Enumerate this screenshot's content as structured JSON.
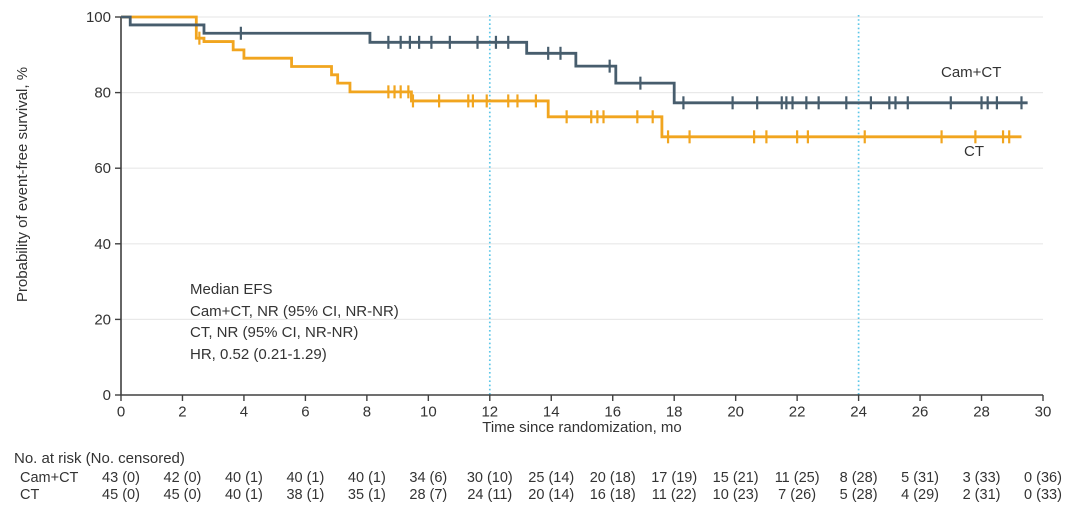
{
  "chart_data": {
    "type": "line",
    "subtype": "kaplan-meier-step",
    "title": "",
    "xlabel": "Time since randomization, mo",
    "ylabel": "Probability of event-free survival, %",
    "xlim": [
      0,
      30
    ],
    "ylim": [
      0,
      100
    ],
    "xticks": [
      0,
      2,
      4,
      6,
      8,
      10,
      12,
      14,
      16,
      18,
      20,
      22,
      24,
      26,
      28,
      30
    ],
    "yticks": [
      0,
      20,
      40,
      60,
      80,
      100
    ],
    "grid": "horizontal",
    "gridline_color": "#e9e9e9",
    "axis_color": "#404040",
    "reference_lines_x": [
      12,
      24
    ],
    "reference_line_color": "#5bc6e8",
    "annotation": [
      "Median EFS",
      "Cam+CT, NR (95% CI, NR-NR)",
      "CT, NR (95% CI, NR-NR)",
      "HR, 0.52 (0.21-1.29)"
    ],
    "series": [
      {
        "name": "CT",
        "color": "#f1a51f",
        "steps": [
          [
            0,
            100
          ],
          [
            2.45,
            94.4
          ],
          [
            2.7,
            93.5
          ],
          [
            3.65,
            91.3
          ],
          [
            4.0,
            89.1
          ],
          [
            5.55,
            86.9
          ],
          [
            6.85,
            84.7
          ],
          [
            7.05,
            82.5
          ],
          [
            7.45,
            80.2
          ],
          [
            9.45,
            77.8
          ],
          [
            13.9,
            73.6
          ],
          [
            17.6,
            68.3
          ],
          [
            29.3,
            68.3
          ]
        ],
        "censors": [
          [
            2.55,
            94.4
          ],
          [
            8.7,
            80.2
          ],
          [
            8.9,
            80.2
          ],
          [
            9.1,
            80.2
          ],
          [
            9.35,
            80.2
          ],
          [
            9.5,
            77.8
          ],
          [
            10.35,
            77.8
          ],
          [
            11.3,
            77.8
          ],
          [
            11.45,
            77.8
          ],
          [
            11.9,
            77.8
          ],
          [
            12.6,
            77.8
          ],
          [
            12.9,
            77.8
          ],
          [
            13.5,
            77.8
          ],
          [
            14.5,
            73.6
          ],
          [
            15.3,
            73.6
          ],
          [
            15.5,
            73.6
          ],
          [
            15.7,
            73.6
          ],
          [
            16.8,
            73.6
          ],
          [
            17.3,
            73.6
          ],
          [
            17.8,
            68.3
          ],
          [
            18.5,
            68.3
          ],
          [
            20.6,
            68.3
          ],
          [
            21.0,
            68.3
          ],
          [
            22.0,
            68.3
          ],
          [
            22.35,
            68.3
          ],
          [
            24.2,
            68.3
          ],
          [
            26.7,
            68.3
          ],
          [
            27.8,
            68.3
          ],
          [
            28.7,
            68.3
          ],
          [
            28.9,
            68.3
          ]
        ]
      },
      {
        "name": "Cam+CT",
        "color": "#475d6d",
        "steps": [
          [
            0,
            100
          ],
          [
            0.3,
            97.9
          ],
          [
            2.7,
            95.7
          ],
          [
            8.1,
            93.3
          ],
          [
            13.2,
            90.4
          ],
          [
            14.8,
            87.0
          ],
          [
            16.1,
            82.5
          ],
          [
            18.0,
            77.3
          ],
          [
            29.5,
            77.3
          ]
        ],
        "censors": [
          [
            3.9,
            95.7
          ],
          [
            8.7,
            93.3
          ],
          [
            9.1,
            93.3
          ],
          [
            9.4,
            93.3
          ],
          [
            9.7,
            93.3
          ],
          [
            10.1,
            93.3
          ],
          [
            10.7,
            93.3
          ],
          [
            11.6,
            93.3
          ],
          [
            12.2,
            93.3
          ],
          [
            12.6,
            93.3
          ],
          [
            13.9,
            90.4
          ],
          [
            14.3,
            90.4
          ],
          [
            15.9,
            87.0
          ],
          [
            16.9,
            82.5
          ],
          [
            18.3,
            77.3
          ],
          [
            19.9,
            77.3
          ],
          [
            20.7,
            77.3
          ],
          [
            21.5,
            77.3
          ],
          [
            21.65,
            77.3
          ],
          [
            21.85,
            77.3
          ],
          [
            22.3,
            77.3
          ],
          [
            22.7,
            77.3
          ],
          [
            23.6,
            77.3
          ],
          [
            24.4,
            77.3
          ],
          [
            25.0,
            77.3
          ],
          [
            25.2,
            77.3
          ],
          [
            25.6,
            77.3
          ],
          [
            27.0,
            77.3
          ],
          [
            28.0,
            77.3
          ],
          [
            28.2,
            77.3
          ],
          [
            28.5,
            77.3
          ],
          [
            29.3,
            77.3
          ]
        ]
      }
    ]
  },
  "risk_table": {
    "header": "No. at risk (No. censored)",
    "time_points": [
      0,
      2,
      4,
      6,
      8,
      10,
      12,
      14,
      16,
      18,
      20,
      22,
      24,
      26,
      28,
      30
    ],
    "rows": [
      {
        "label": "Cam+CT",
        "values": [
          "43 (0)",
          "42 (0)",
          "40 (1)",
          "40 (1)",
          "40 (1)",
          "34 (6)",
          "30 (10)",
          "25 (14)",
          "20 (18)",
          "17 (19)",
          "15 (21)",
          "11 (25)",
          "8 (28)",
          "5 (31)",
          "3 (33)",
          "0 (36)"
        ]
      },
      {
        "label": "CT",
        "values": [
          "45 (0)",
          "45 (0)",
          "40 (1)",
          "38 (1)",
          "35 (1)",
          "28 (7)",
          "24 (11)",
          "20 (14)",
          "16 (18)",
          "11 (22)",
          "10 (23)",
          "7 (26)",
          "5 (28)",
          "4 (29)",
          "2 (31)",
          "0 (33)"
        ]
      }
    ]
  }
}
